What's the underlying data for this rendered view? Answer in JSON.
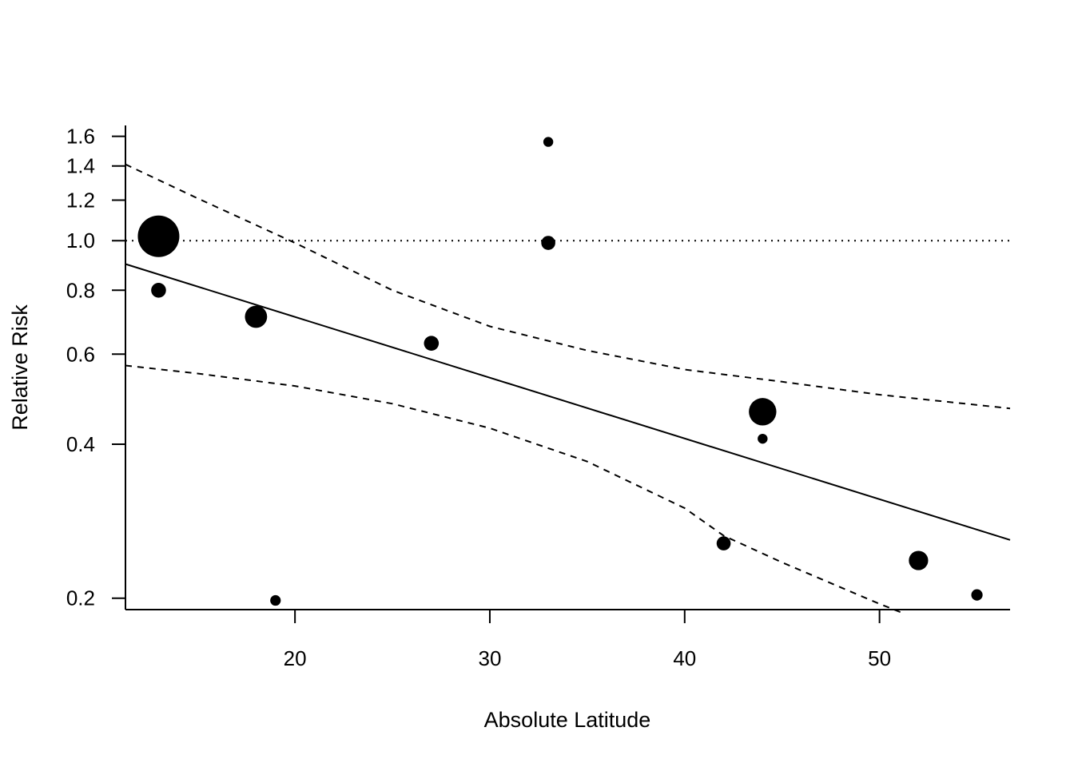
{
  "chart_data": {
    "type": "scatter",
    "title": "",
    "xlabel": "Absolute Latitude",
    "ylabel": "Relative Risk",
    "y_scale": "log",
    "xlim": [
      11.3,
      56.7
    ],
    "ylim": [
      0.19,
      1.68
    ],
    "x_ticks": [
      20,
      30,
      40,
      50
    ],
    "x_tick_labels": [
      "20",
      "30",
      "40",
      "50"
    ],
    "y_ticks": [
      0.2,
      0.4,
      0.6,
      0.8,
      1.0,
      1.2,
      1.4,
      1.6
    ],
    "y_tick_labels": [
      "0.2",
      "0.4",
      "0.6",
      "0.8",
      "1.0",
      "1.2",
      "1.4",
      "1.6"
    ],
    "grid": false,
    "legend": "none",
    "reference_line": {
      "y": 1.0,
      "style": "dotted"
    },
    "regression_line": {
      "x": [
        11.3,
        56.7
      ],
      "y": [
        0.9,
        0.26
      ]
    },
    "ci_upper": {
      "x": [
        11.3,
        15,
        20,
        25,
        30,
        35,
        40,
        45,
        50,
        56.7
      ],
      "y": [
        1.41,
        1.21,
        0.99,
        0.8,
        0.68,
        0.61,
        0.56,
        0.53,
        0.5,
        0.47
      ]
    },
    "ci_lower": {
      "x": [
        11.3,
        15,
        20,
        25,
        30,
        35,
        40,
        42,
        45,
        50,
        51.2
      ],
      "y": [
        0.57,
        0.55,
        0.52,
        0.48,
        0.43,
        0.37,
        0.3,
        0.265,
        0.235,
        0.195,
        0.187
      ]
    },
    "points": [
      {
        "x": 13,
        "y": 1.02,
        "weight": 1.0
      },
      {
        "x": 13,
        "y": 0.8,
        "weight": 0.24
      },
      {
        "x": 18,
        "y": 0.71,
        "weight": 0.45
      },
      {
        "x": 19,
        "y": 0.198,
        "weight": 0.12
      },
      {
        "x": 27,
        "y": 0.63,
        "weight": 0.24
      },
      {
        "x": 33,
        "y": 1.56,
        "weight": 0.1
      },
      {
        "x": 33,
        "y": 0.99,
        "weight": 0.22
      },
      {
        "x": 42,
        "y": 0.256,
        "weight": 0.22
      },
      {
        "x": 44,
        "y": 0.463,
        "weight": 0.6
      },
      {
        "x": 44,
        "y": 0.41,
        "weight": 0.1
      },
      {
        "x": 52,
        "y": 0.237,
        "weight": 0.37
      },
      {
        "x": 55,
        "y": 0.203,
        "weight": 0.14
      }
    ],
    "colors": {
      "ink": "#000000",
      "background": "#ffffff"
    }
  }
}
